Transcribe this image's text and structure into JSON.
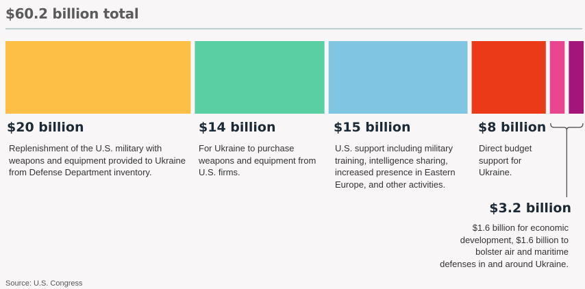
{
  "title": "$60.2 billion total",
  "source": "Source: U.S. Congress",
  "chart_data": {
    "type": "bar",
    "stacked": true,
    "orientation": "horizontal",
    "total": 60.2,
    "unit": "billion USD",
    "segments": [
      {
        "value": 20,
        "color": "#fdbf45",
        "amount": "$20 billion",
        "description": "Replenishment of the U.S. military with weapons and equipment provided to Ukraine from Defense Department inventory."
      },
      {
        "value": 14,
        "color": "#5bcfa4",
        "amount": "$14 billion",
        "description": "For Ukraine to purchase weapons and equipment from U.S. firms."
      },
      {
        "value": 15,
        "color": "#80c5e2",
        "amount": "$15 billion",
        "description": "U.S. support including military training, intelligence sharing, increased presence in Eastern Europe, and other activities."
      },
      {
        "value": 8,
        "color": "#ea3a18",
        "amount": "$8 billion",
        "description": "Direct budget support for Ukraine."
      },
      {
        "value": 1.6,
        "color": "#e8468f",
        "group": "$3.2 billion"
      },
      {
        "value": 1.6,
        "color": "#a4157c",
        "group": "$3.2 billion"
      }
    ],
    "group_annotation": {
      "amount": "$3.2 billion",
      "description": "$1.6 billion for economic development, $1.6 billion to bolster air and maritime defenses in and around Ukraine."
    }
  }
}
